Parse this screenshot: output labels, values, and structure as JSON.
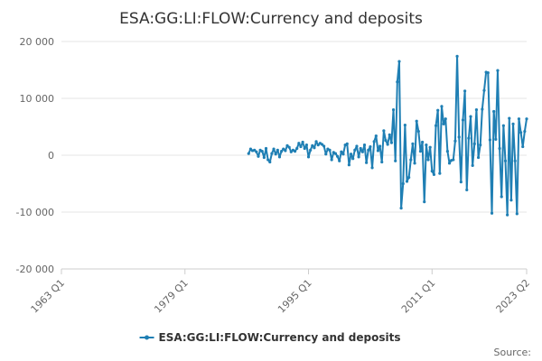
{
  "colors": {
    "series": "#1f7fb4",
    "grid": "#e6e6e6",
    "axis": "#cccccc"
  },
  "source_label": "Source:",
  "chart_data": {
    "type": "line",
    "title": "ESA:GG:LI:FLOW:Currency and deposits",
    "xlabel": "",
    "ylabel": "",
    "ylim": [
      -20000,
      20000
    ],
    "y_ticks": [
      20000,
      10000,
      0,
      -10000,
      -20000
    ],
    "y_tick_labels": [
      "20 000",
      "10 000",
      "0",
      "-10 000",
      "-20 000"
    ],
    "x_ticks": [
      "1963 Q1",
      "1979 Q1",
      "1995 Q1",
      "2011 Q1",
      "2023 Q2"
    ],
    "grid": true,
    "legend": "bottom-center",
    "series": [
      {
        "name": "ESA:GG:LI:FLOW:Currency and deposits",
        "color": "#1f7fb4",
        "points": [
          [
            "1987 Q2",
            300
          ],
          [
            "1987 Q3",
            1100
          ],
          [
            "1987 Q4",
            800
          ],
          [
            "1988 Q1",
            900
          ],
          [
            "1988 Q2",
            600
          ],
          [
            "1988 Q3",
            -200
          ],
          [
            "1988 Q4",
            900
          ],
          [
            "1989 Q1",
            700
          ],
          [
            "1989 Q2",
            -400
          ],
          [
            "1989 Q3",
            1200
          ],
          [
            "1989 Q4",
            -800
          ],
          [
            "1990 Q1",
            -1200
          ],
          [
            "1990 Q2",
            300
          ],
          [
            "1990 Q3",
            1100
          ],
          [
            "1990 Q4",
            200
          ],
          [
            "1991 Q1",
            900
          ],
          [
            "1991 Q2",
            -300
          ],
          [
            "1991 Q3",
            700
          ],
          [
            "1991 Q4",
            1100
          ],
          [
            "1992 Q1",
            800
          ],
          [
            "1992 Q2",
            1700
          ],
          [
            "1992 Q3",
            1400
          ],
          [
            "1992 Q4",
            600
          ],
          [
            "1993 Q1",
            900
          ],
          [
            "1993 Q2",
            700
          ],
          [
            "1993 Q3",
            1200
          ],
          [
            "1993 Q4",
            2100
          ],
          [
            "1994 Q1",
            1500
          ],
          [
            "1994 Q2",
            2300
          ],
          [
            "1994 Q3",
            1200
          ],
          [
            "1994 Q4",
            1800
          ],
          [
            "1995 Q1",
            -300
          ],
          [
            "1995 Q2",
            900
          ],
          [
            "1995 Q3",
            1700
          ],
          [
            "1995 Q4",
            1300
          ],
          [
            "1996 Q1",
            2400
          ],
          [
            "1996 Q2",
            1800
          ],
          [
            "1996 Q3",
            2100
          ],
          [
            "1996 Q4",
            1900
          ],
          [
            "1997 Q1",
            1600
          ],
          [
            "1997 Q2",
            200
          ],
          [
            "1997 Q3",
            1100
          ],
          [
            "1997 Q4",
            900
          ],
          [
            "1998 Q1",
            -800
          ],
          [
            "1998 Q2",
            500
          ],
          [
            "1998 Q3",
            300
          ],
          [
            "1998 Q4",
            -200
          ],
          [
            "1999 Q1",
            -1000
          ],
          [
            "1999 Q2",
            600
          ],
          [
            "1999 Q3",
            200
          ],
          [
            "1999 Q4",
            1800
          ],
          [
            "2000 Q1",
            2000
          ],
          [
            "2000 Q2",
            -1700
          ],
          [
            "2000 Q3",
            200
          ],
          [
            "2000 Q4",
            -600
          ],
          [
            "2001 Q1",
            900
          ],
          [
            "2001 Q2",
            1600
          ],
          [
            "2001 Q3",
            -300
          ],
          [
            "2001 Q4",
            1200
          ],
          [
            "2002 Q1",
            600
          ],
          [
            "2002 Q2",
            1800
          ],
          [
            "2002 Q3",
            -1300
          ],
          [
            "2002 Q4",
            900
          ],
          [
            "2003 Q1",
            1500
          ],
          [
            "2003 Q2",
            -2200
          ],
          [
            "2003 Q3",
            2400
          ],
          [
            "2003 Q4",
            3400
          ],
          [
            "2004 Q1",
            800
          ],
          [
            "2004 Q2",
            1600
          ],
          [
            "2004 Q3",
            -1200
          ],
          [
            "2004 Q4",
            4300
          ],
          [
            "2005 Q1",
            2600
          ],
          [
            "2005 Q2",
            1900
          ],
          [
            "2005 Q3",
            3600
          ],
          [
            "2005 Q4",
            2200
          ],
          [
            "2006 Q1",
            8000
          ],
          [
            "2006 Q2",
            -1000
          ],
          [
            "2006 Q3",
            12900
          ],
          [
            "2006 Q4",
            16500
          ],
          [
            "2007 Q1",
            -9300
          ],
          [
            "2007 Q2",
            -5000
          ],
          [
            "2007 Q3",
            5300
          ],
          [
            "2007 Q4",
            -4600
          ],
          [
            "2008 Q1",
            -3900
          ],
          [
            "2008 Q2",
            -800
          ],
          [
            "2008 Q3",
            2000
          ],
          [
            "2008 Q4",
            -1400
          ],
          [
            "2009 Q1",
            6000
          ],
          [
            "2009 Q2",
            4200
          ],
          [
            "2009 Q3",
            700
          ],
          [
            "2009 Q4",
            2300
          ],
          [
            "2010 Q1",
            -8200
          ],
          [
            "2010 Q2",
            1800
          ],
          [
            "2010 Q3",
            -800
          ],
          [
            "2010 Q4",
            1400
          ],
          [
            "2011 Q1",
            -2800
          ],
          [
            "2011 Q2",
            -3400
          ],
          [
            "2011 Q3",
            5200
          ],
          [
            "2011 Q4",
            7900
          ],
          [
            "2012 Q1",
            -3200
          ],
          [
            "2012 Q2",
            8600
          ],
          [
            "2012 Q3",
            5500
          ],
          [
            "2012 Q4",
            6400
          ],
          [
            "2013 Q1",
            700
          ],
          [
            "2013 Q2",
            -1400
          ],
          [
            "2013 Q3",
            -900
          ],
          [
            "2013 Q4",
            -800
          ],
          [
            "2014 Q1",
            2500
          ],
          [
            "2014 Q2",
            17400
          ],
          [
            "2014 Q3",
            3200
          ],
          [
            "2014 Q4",
            -4700
          ],
          [
            "2015 Q1",
            6200
          ],
          [
            "2015 Q2",
            11300
          ],
          [
            "2015 Q3",
            -6100
          ],
          [
            "2015 Q4",
            3000
          ],
          [
            "2016 Q1",
            6800
          ],
          [
            "2016 Q2",
            -1800
          ],
          [
            "2016 Q3",
            2000
          ],
          [
            "2016 Q4",
            8000
          ],
          [
            "2017 Q1",
            -400
          ],
          [
            "2017 Q2",
            1800
          ],
          [
            "2017 Q3",
            8100
          ],
          [
            "2017 Q4",
            11400
          ],
          [
            "2018 Q1",
            14600
          ],
          [
            "2018 Q2",
            14500
          ],
          [
            "2018 Q3",
            2700
          ],
          [
            "2018 Q4",
            -10200
          ],
          [
            "2019 Q1",
            7700
          ],
          [
            "2019 Q2",
            2800
          ],
          [
            "2019 Q3",
            14900
          ],
          [
            "2019 Q4",
            1200
          ],
          [
            "2020 Q1",
            -7300
          ],
          [
            "2020 Q2",
            5200
          ],
          [
            "2020 Q3",
            -1000
          ],
          [
            "2020 Q4",
            -10500
          ],
          [
            "2021 Q1",
            6500
          ],
          [
            "2021 Q2",
            -7900
          ],
          [
            "2021 Q3",
            5500
          ],
          [
            "2021 Q4",
            -1000
          ],
          [
            "2022 Q1",
            -10300
          ],
          [
            "2022 Q2",
            6400
          ],
          [
            "2022 Q3",
            4000
          ],
          [
            "2022 Q4",
            1500
          ],
          [
            "2023 Q1",
            4200
          ],
          [
            "2023 Q2",
            6400
          ]
        ]
      }
    ]
  }
}
